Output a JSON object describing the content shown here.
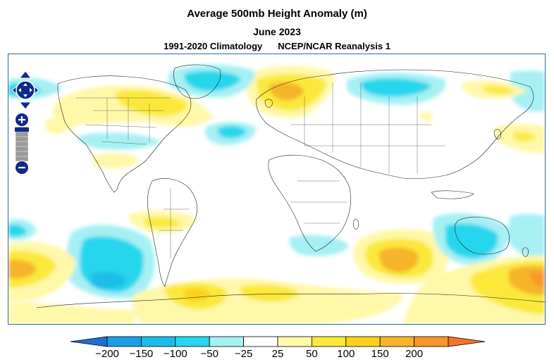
{
  "header": {
    "title": "Average 500mb Height Anomaly (m)",
    "date": "June 2023",
    "climatology": "1991-2020 Climatology",
    "source": "NCEP/NCAR Reanalysis 1"
  },
  "map": {
    "variable": "500mb height anomaly",
    "units": "m",
    "projection": "equirectangular (global)",
    "features": [
      "positive anomaly over Scandinavia",
      "positive anomaly over eastern Canada",
      "negative anomaly over central North Atlantic",
      "negative anomaly over South Pacific",
      "positive anomaly over South Atlantic",
      "positive anomaly over southern Indian Ocean / south of Australia"
    ]
  },
  "controls": {
    "pan": [
      "pan-up",
      "pan-left",
      "pan-right",
      "pan-down"
    ],
    "zoom": [
      "zoom-in",
      "zoom-out"
    ]
  },
  "colorbar": {
    "labels": [
      "−200",
      "−150",
      "−100",
      "−50",
      "−25",
      "25",
      "50",
      "100",
      "150",
      "200"
    ],
    "colors": [
      "#1f6fd1",
      "#1c9fe6",
      "#1bbde8",
      "#25d6ec",
      "#a6f0f4",
      "#ffffff",
      "#fffaa8",
      "#fbe83a",
      "#f9d21c",
      "#f6b42a",
      "#f7962a",
      "#f57428"
    ]
  }
}
